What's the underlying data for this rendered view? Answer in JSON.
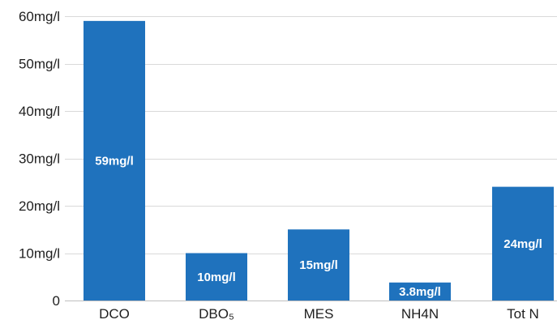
{
  "chart_data": {
    "type": "bar",
    "categories": [
      "DCO",
      "DBO₅",
      "MES",
      "NH4N",
      "Tot N"
    ],
    "values": [
      59,
      10,
      15,
      3.8,
      24
    ],
    "data_labels": [
      "59mg/l",
      "10mg/l",
      "15mg/l",
      "3.8mg/l",
      "24mg/l"
    ],
    "y_ticks": [
      0,
      10,
      20,
      30,
      40,
      50,
      60
    ],
    "y_tick_labels": [
      "0",
      "10mg/l",
      "20mg/l",
      "30mg/l",
      "40mg/l",
      "50mg/l",
      "60mg/l"
    ],
    "ylim": [
      0,
      60
    ],
    "grid": true,
    "legend": "none",
    "colors": {
      "bar": "#1f72bd",
      "grid": "#d9d9d9",
      "text": "#1e1e1e",
      "data_label": "#ffffff"
    }
  }
}
